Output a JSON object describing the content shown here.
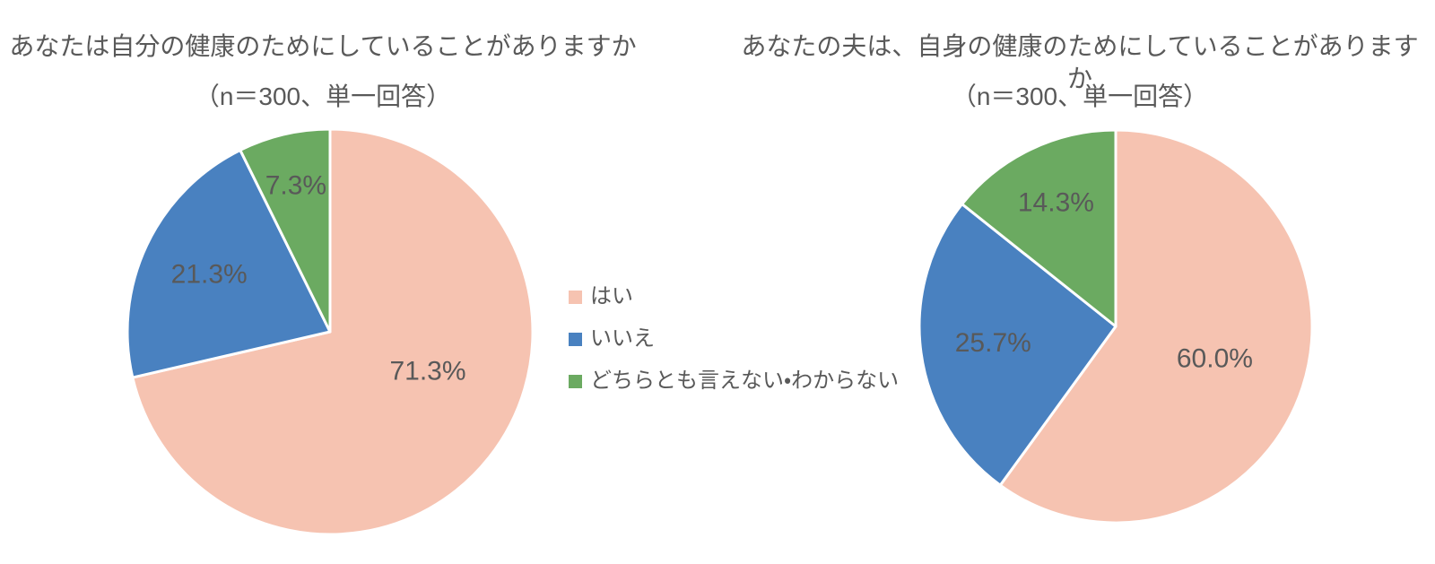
{
  "page": {
    "background_color": "#ffffff",
    "text_color": "#595959"
  },
  "colors": {
    "yes": "#F6C3B1",
    "no": "#4981C0",
    "unsure": "#6BAA61",
    "separator": "#ffffff",
    "label_text": "#595959"
  },
  "legend": {
    "position": "center-between-charts",
    "items": [
      {
        "label": "はい",
        "color": "#F6C3B1"
      },
      {
        "label": "いいえ",
        "color": "#4981C0"
      },
      {
        "label": "どちらとも言えない・わからない",
        "color": "#6BAA61"
      }
    ]
  },
  "chart_data": [
    {
      "type": "pie",
      "title": "あなたは自分の健康のためにしていることがありますか",
      "subtitle": "（n＝300、単一回答）",
      "categories": [
        "はい",
        "いいえ",
        "どちらとも言えない・わからない"
      ],
      "values": [
        71.3,
        21.3,
        7.3
      ],
      "labels": [
        "71.3%",
        "21.3%",
        "7.3%"
      ],
      "colors": [
        "#F6C3B1",
        "#4981C0",
        "#6BAA61"
      ],
      "units": "%",
      "start_angle_deg": 0,
      "direction": "clockwise",
      "label_placement": "inside",
      "legend_position": "right"
    },
    {
      "type": "pie",
      "title": "あなたの夫は、自身の健康のためにしていることがありますか",
      "subtitle": "（n＝300、単一回答）",
      "categories": [
        "はい",
        "いいえ",
        "どちらとも言えない・わからない"
      ],
      "values": [
        60.0,
        25.7,
        14.3
      ],
      "labels": [
        "60.0%",
        "25.7%",
        "14.3%"
      ],
      "colors": [
        "#F6C3B1",
        "#4981C0",
        "#6BAA61"
      ],
      "units": "%",
      "start_angle_deg": 0,
      "direction": "clockwise",
      "label_placement": "inside",
      "legend_position": "left"
    }
  ]
}
